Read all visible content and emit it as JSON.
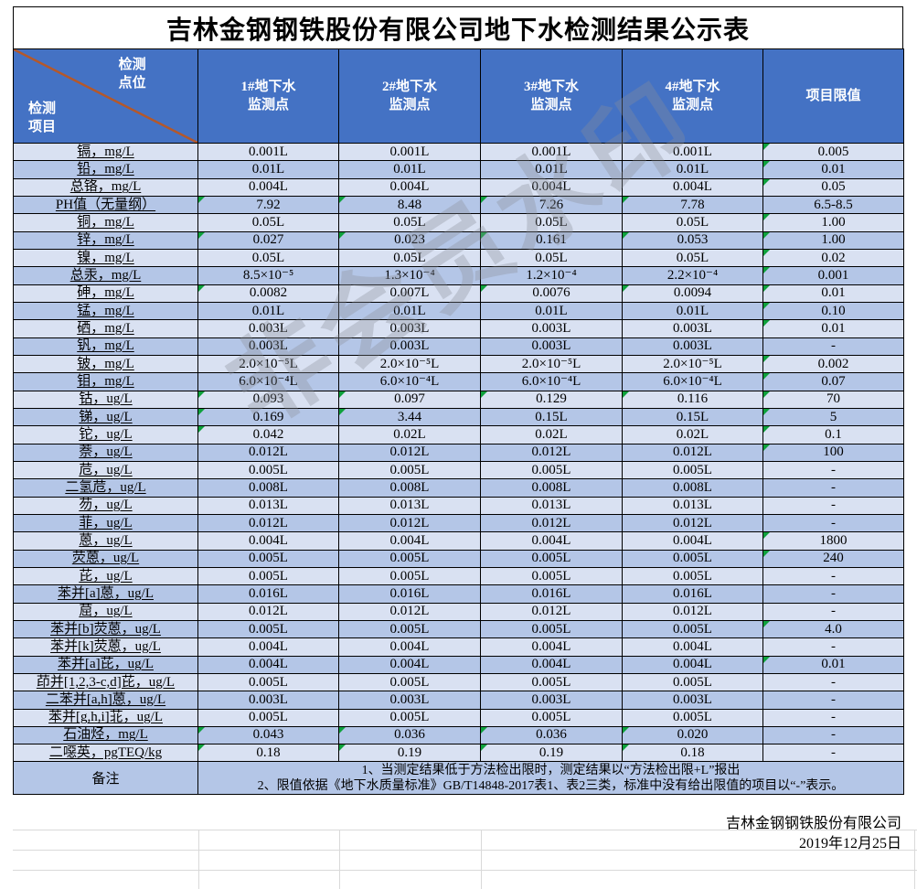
{
  "title": "吉林金钢钢铁股份有限公司地下水检测结果公示表",
  "header": {
    "corner_top": "检测\n点位",
    "corner_bottom": "检测\n项目",
    "columns": [
      "1#地下水\n监测点",
      "2#地下水\n监测点",
      "3#地下水\n监测点",
      "4#地下水\n监测点",
      "项目限值"
    ]
  },
  "table": {
    "rows": [
      {
        "label": "镉，mg/L",
        "values": [
          "0.001L",
          "0.001L",
          "0.001L",
          "0.001L",
          "0.005"
        ],
        "green": [
          0,
          0,
          0,
          0,
          1
        ]
      },
      {
        "label": "铅，mg/L",
        "values": [
          "0.01L",
          "0.01L",
          "0.01L",
          "0.01L",
          "0.01"
        ],
        "green": [
          0,
          0,
          0,
          0,
          1
        ]
      },
      {
        "label": "总铬，mg/L",
        "values": [
          "0.004L",
          "0.004L",
          "0.004L",
          "0.004L",
          "0.05"
        ],
        "green": [
          0,
          0,
          0,
          0,
          1
        ]
      },
      {
        "label": "PH值（无量纲）",
        "values": [
          "7.92",
          "8.48",
          "7.26",
          "7.78",
          "6.5-8.5"
        ],
        "green": [
          1,
          1,
          1,
          1,
          0
        ]
      },
      {
        "label": "铜，mg/L",
        "values": [
          "0.05L",
          "0.05L",
          "0.05L",
          "0.05L",
          "1.00"
        ],
        "green": [
          0,
          0,
          0,
          0,
          1
        ]
      },
      {
        "label": "锌，mg/L",
        "values": [
          "0.027",
          "0.023",
          "0.161",
          "0.053",
          "1.00"
        ],
        "green": [
          1,
          1,
          1,
          1,
          1
        ]
      },
      {
        "label": "镍，mg/L",
        "values": [
          "0.05L",
          "0.05L",
          "0.05L",
          "0.05L",
          "0.02"
        ],
        "green": [
          0,
          0,
          0,
          0,
          1
        ]
      },
      {
        "label": "总汞，mg/L",
        "values": [
          "8.5×10⁻⁵",
          "1.3×10⁻⁴",
          "1.2×10⁻⁴",
          "2.2×10⁻⁴",
          "0.001"
        ],
        "green": [
          0,
          0,
          0,
          0,
          1
        ]
      },
      {
        "label": "砷，mg/L",
        "values": [
          "0.0082",
          "0.007L",
          "0.0076",
          "0.0094",
          "0.01"
        ],
        "green": [
          1,
          0,
          1,
          1,
          1
        ]
      },
      {
        "label": "锰，mg/L",
        "values": [
          "0.01L",
          "0.01L",
          "0.01L",
          "0.01L",
          "0.10"
        ],
        "green": [
          0,
          0,
          0,
          0,
          1
        ]
      },
      {
        "label": "硒，mg/L",
        "values": [
          "0.003L",
          "0.003L",
          "0.003L",
          "0.003L",
          "0.01"
        ],
        "green": [
          0,
          0,
          0,
          0,
          1
        ]
      },
      {
        "label": "钒，mg/L",
        "values": [
          "0.003L",
          "0.003L",
          "0.003L",
          "0.003L",
          "-"
        ],
        "green": [
          0,
          0,
          0,
          0,
          0
        ]
      },
      {
        "label": "铍，mg/L",
        "values": [
          "2.0×10⁻⁵L",
          "2.0×10⁻⁵L",
          "2.0×10⁻⁵L",
          "2.0×10⁻⁵L",
          "0.002"
        ],
        "green": [
          0,
          0,
          0,
          0,
          1
        ]
      },
      {
        "label": "钼，mg/L",
        "values": [
          "6.0×10⁻⁴L",
          "6.0×10⁻⁴L",
          "6.0×10⁻⁴L",
          "6.0×10⁻⁴L",
          "0.07"
        ],
        "green": [
          0,
          0,
          0,
          0,
          1
        ]
      },
      {
        "label": "钴，ug/L",
        "values": [
          "0.093",
          "0.097",
          "0.129",
          "0.116",
          "70"
        ],
        "green": [
          1,
          1,
          1,
          1,
          1
        ]
      },
      {
        "label": "锑，ug/L",
        "values": [
          "0.169",
          "3.44",
          "0.15L",
          "0.15L",
          "5"
        ],
        "green": [
          1,
          1,
          0,
          0,
          1
        ]
      },
      {
        "label": "铊，ug/L",
        "values": [
          "0.042",
          "0.02L",
          "0.02L",
          "0.02L",
          "0.1"
        ],
        "green": [
          1,
          0,
          0,
          0,
          1
        ]
      },
      {
        "label": "萘，ug/L",
        "values": [
          "0.012L",
          "0.012L",
          "0.012L",
          "0.012L",
          "100"
        ],
        "green": [
          0,
          0,
          0,
          0,
          1
        ]
      },
      {
        "label": "苊，ug/L",
        "values": [
          "0.005L",
          "0.005L",
          "0.005L",
          "0.005L",
          "-"
        ],
        "green": [
          0,
          0,
          0,
          0,
          0
        ]
      },
      {
        "label": "二氢苊，ug/L",
        "values": [
          "0.008L",
          "0.008L",
          "0.008L",
          "0.008L",
          "-"
        ],
        "green": [
          0,
          0,
          0,
          0,
          0
        ]
      },
      {
        "label": "芴，ug/L",
        "values": [
          "0.013L",
          "0.013L",
          "0.013L",
          "0.013L",
          "-"
        ],
        "green": [
          0,
          0,
          0,
          0,
          0
        ]
      },
      {
        "label": "菲，ug/L",
        "values": [
          "0.012L",
          "0.012L",
          "0.012L",
          "0.012L",
          "-"
        ],
        "green": [
          0,
          0,
          0,
          0,
          0
        ]
      },
      {
        "label": "蒽，ug/L",
        "values": [
          "0.004L",
          "0.004L",
          "0.004L",
          "0.004L",
          "1800"
        ],
        "green": [
          0,
          0,
          0,
          0,
          1
        ]
      },
      {
        "label": "荧蒽，ug/L",
        "values": [
          "0.005L",
          "0.005L",
          "0.005L",
          "0.005L",
          "240"
        ],
        "green": [
          0,
          0,
          0,
          0,
          1
        ]
      },
      {
        "label": "芘，ug/L",
        "values": [
          "0.005L",
          "0.005L",
          "0.005L",
          "0.005L",
          "-"
        ],
        "green": [
          0,
          0,
          0,
          0,
          0
        ]
      },
      {
        "label": "苯并[a]蒽，ug/L",
        "values": [
          "0.016L",
          "0.016L",
          "0.016L",
          "0.016L",
          "-"
        ],
        "green": [
          0,
          0,
          0,
          0,
          0
        ]
      },
      {
        "label": "䓛，ug/L",
        "values": [
          "0.012L",
          "0.012L",
          "0.012L",
          "0.012L",
          "-"
        ],
        "green": [
          0,
          0,
          0,
          0,
          0
        ]
      },
      {
        "label": "苯并[b]荧蒽，ug/L",
        "values": [
          "0.005L",
          "0.005L",
          "0.005L",
          "0.005L",
          "4.0"
        ],
        "green": [
          0,
          0,
          0,
          0,
          1
        ]
      },
      {
        "label": "苯并[k]荧蒽，ug/L",
        "values": [
          "0.004L",
          "0.004L",
          "0.004L",
          "0.004L",
          "-"
        ],
        "green": [
          0,
          0,
          0,
          0,
          0
        ]
      },
      {
        "label": "苯并[a]芘，ug/L",
        "values": [
          "0.004L",
          "0.004L",
          "0.004L",
          "0.004L",
          "0.01"
        ],
        "green": [
          0,
          0,
          0,
          0,
          1
        ]
      },
      {
        "label": "茚并[1,2,3-c,d]芘，ug/L",
        "values": [
          "0.005L",
          "0.005L",
          "0.005L",
          "0.005L",
          "-"
        ],
        "green": [
          0,
          0,
          0,
          0,
          0
        ]
      },
      {
        "label": "二苯并[a,h]蒽，ug/L",
        "values": [
          "0.003L",
          "0.003L",
          "0.003L",
          "0.003L",
          "-"
        ],
        "green": [
          0,
          0,
          0,
          0,
          0
        ]
      },
      {
        "label": "苯并[g,h,i]苝，ug/L",
        "values": [
          "0.005L",
          "0.005L",
          "0.005L",
          "0.005L",
          "-"
        ],
        "green": [
          0,
          0,
          0,
          0,
          0
        ]
      },
      {
        "label": "石油烃，mg/L",
        "values": [
          "0.043",
          "0.036",
          "0.036",
          "0.020",
          "-"
        ],
        "green": [
          1,
          1,
          1,
          1,
          0
        ]
      },
      {
        "label": "二噁英，pgTEQ/kg",
        "values": [
          "0.18",
          "0.19",
          "0.19",
          "0.18",
          "-"
        ],
        "green": [
          1,
          1,
          1,
          1,
          0
        ]
      }
    ]
  },
  "remark": {
    "label": "备注",
    "lines": [
      "1、当测定结果低于方法检出限时，测定结果以“方法检出限+L”报出",
      "2、限值依据《地下水质量标准》GB/T14848-2017表1、表2三类，标准中没有给出限值的项目以“-”表示。"
    ]
  },
  "watermark": "非会员水印",
  "signature": {
    "company": "吉林金钢钢铁股份有限公司",
    "date": "2019年12月25日"
  },
  "colors": {
    "header_blue": "#4472C4",
    "row_light": "#D9E1F2",
    "row_dark": "#B4C6E7",
    "diagonal_brown": "#B4582A",
    "flag_green": "#0EA13C"
  }
}
